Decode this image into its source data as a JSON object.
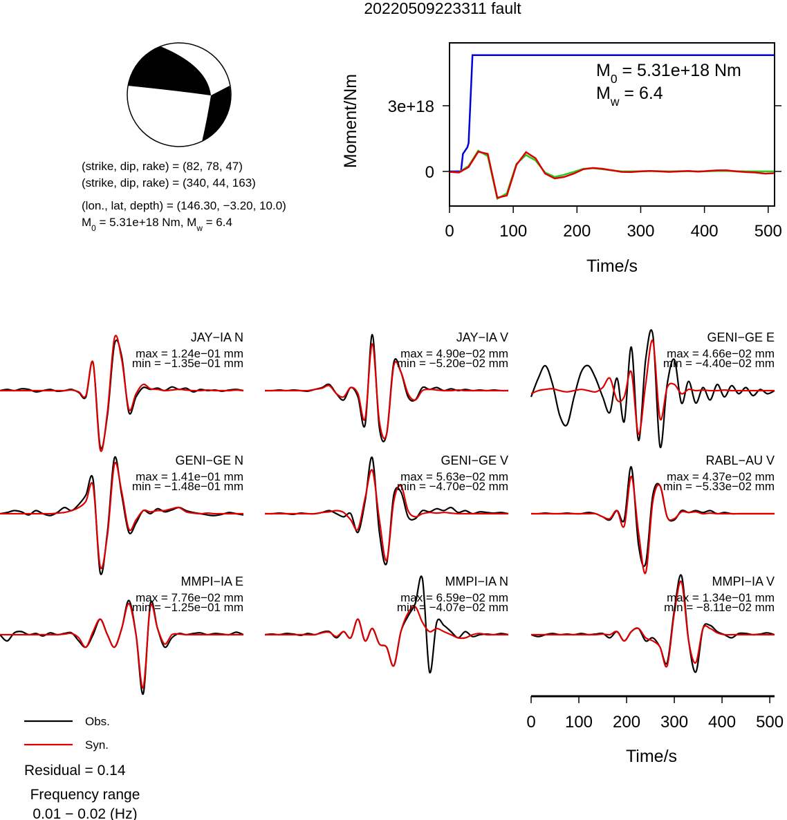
{
  "title": "20220509223311 fault",
  "mechanism": {
    "lines": [
      "(strike, dip, rake) = (82, 78, 47)",
      "(strike, dip, rake) = (340, 44, 163)",
      "(lon., lat, depth) = (146.30, −3.20, 10.0)"
    ],
    "moment_line": [
      "M",
      "0",
      " = 5.31e+18 Nm, M",
      "w",
      " = 6.4"
    ]
  },
  "legend": [
    {
      "name": "Obs.",
      "color": "#000000"
    },
    {
      "name": "Syn.",
      "color": "#dd0000"
    }
  ],
  "residual": "Residual = 0.14",
  "frequency": [
    "Frequency range",
    "0.01 − 0.02 (Hz)"
  ],
  "chart_data": [
    {
      "type": "line",
      "ylabel": "Moment/Nm",
      "xlabel": "Time/s",
      "xlim": [
        0,
        510
      ],
      "xticks": [
        0,
        100,
        200,
        300,
        400,
        500
      ],
      "ylim": [
        -1.58e+18,
        5.87e+18
      ],
      "yticks": [
        0,
        {
          "value": 3e+18,
          "label": "3e+18"
        }
      ],
      "grid": false,
      "annotations": [
        [
          "M",
          "0",
          " = 5.31e+18 Nm"
        ],
        [
          "M",
          "w",
          " = 6.4"
        ]
      ],
      "series": [
        {
          "color": "#0000dd",
          "x": [
            0,
            18,
            21,
            28,
            30,
            36,
            510
          ],
          "values": [
            0,
            0,
            8e+17,
            1.1e+18,
            1.3e+18,
            5.31e+18,
            5.31e+18
          ]
        },
        {
          "color": "#22cc22",
          "x": [
            0,
            15,
            30,
            45,
            60,
            75,
            90,
            105,
            120,
            135,
            150,
            165,
            180,
            195,
            210,
            225,
            240,
            255,
            270,
            285,
            300,
            315,
            330,
            345,
            360,
            375,
            390,
            405,
            420,
            435,
            450,
            465,
            480,
            495,
            510
          ],
          "values": [
            -2e+16,
            -4e+16,
            2.5e+17,
            9.5e+17,
            7e+17,
            -1.25e+18,
            -1e+18,
            3.5e+17,
            7.5e+17,
            5e+17,
            -5e+16,
            -2.5e+17,
            -1.5e+17,
            -2e+16,
            1.2e+17,
            1.5e+17,
            1e+17,
            5e+16,
            0,
            0,
            1e+16,
            2e+16,
            1e+16,
            0,
            1e+16,
            1e+16,
            0,
            1e+16,
            2e+16,
            2e+16,
            1e+16,
            0,
            0,
            0,
            0
          ]
        },
        {
          "color": "#dd0000",
          "x": [
            0,
            15,
            30,
            45,
            60,
            75,
            90,
            105,
            120,
            135,
            150,
            165,
            180,
            195,
            210,
            225,
            240,
            255,
            270,
            285,
            300,
            315,
            330,
            345,
            360,
            375,
            390,
            405,
            420,
            435,
            450,
            465,
            480,
            495,
            510
          ],
          "values": [
            -2e+16,
            -5e+16,
            2e+17,
            9e+17,
            8e+17,
            -1.2e+18,
            -1.1e+18,
            3e+17,
            8.8e+17,
            6e+17,
            -1e+17,
            -3.2e+17,
            -2.5e+17,
            -1e+17,
            1e+17,
            1.6e+17,
            1.2e+17,
            5e+16,
            -2e+16,
            -3e+16,
            0,
            2e+16,
            0,
            -2e+16,
            0,
            2e+16,
            -1e+16,
            2e+16,
            5e+16,
            5e+16,
            0,
            -3e+16,
            -5e+16,
            -1e+17,
            -8e+16
          ]
        }
      ]
    },
    {
      "type": "waveform",
      "xlabel": "Time/s",
      "xlim": [
        0,
        510
      ],
      "xticks": [
        0,
        100,
        200,
        300,
        400,
        500
      ],
      "ylim": [
        -1,
        1
      ],
      "x": [
        0,
        15,
        30,
        45,
        60,
        75,
        90,
        105,
        120,
        135,
        150,
        165,
        180,
        195,
        210,
        225,
        240,
        255,
        270,
        285,
        300,
        315,
        330,
        345,
        360,
        375,
        390,
        405,
        420,
        435,
        450,
        465,
        480,
        495,
        510
      ],
      "panels": [
        {
          "label": "JAY−IA N",
          "max": "max = 1.24e−01 mm",
          "min": "min = −1.35e−01 mm",
          "obs": [
            0,
            0.02,
            0,
            0.03,
            0.02,
            -0.02,
            0,
            0.02,
            -0.01,
            0,
            0.02,
            -0.03,
            -0.1,
            0.45,
            -0.9,
            -0.4,
            0.75,
            0.55,
            -0.35,
            -0.1,
            0.05,
            0.02,
            0.04,
            0,
            0.06,
            0.02,
            0.04,
            -0.02,
            0.02,
            0,
            0.01,
            -0.01,
            0.01,
            0.02,
            0
          ],
          "syn": [
            0,
            0,
            0,
            0,
            0,
            0,
            0,
            0,
            0,
            0,
            0.01,
            -0.02,
            -0.08,
            0.45,
            -0.95,
            -0.35,
            0.85,
            0.5,
            -0.3,
            -0.05,
            0.1,
            0.03,
            0.02,
            0,
            0.01,
            0.02,
            0.01,
            0,
            0,
            0.01,
            0,
            0,
            0,
            0.01,
            0
          ]
        },
        {
          "label": "JAY−IA V",
          "max": "max = 4.90e−02 mm",
          "min": "min = −5.20e−02 mm",
          "obs": [
            0,
            0,
            0.01,
            0,
            0.01,
            0,
            -0.01,
            0.02,
            0.05,
            0.1,
            -0.05,
            -0.15,
            0.05,
            -0.1,
            -0.55,
            0.9,
            -0.6,
            -0.7,
            0.45,
            0.3,
            -0.1,
            -0.15,
            0.05,
            0.02,
            0.05,
            0,
            0.03,
            0,
            0.02,
            0,
            0.01,
            0,
            0.01,
            0,
            0
          ],
          "syn": [
            0,
            0,
            0,
            0,
            0,
            0,
            0,
            0.02,
            0.04,
            0.08,
            -0.05,
            -0.1,
            0.05,
            -0.05,
            -0.45,
            0.75,
            -0.5,
            -0.7,
            0.4,
            0.3,
            -0.05,
            -0.15,
            0,
            0.02,
            0.01,
            0,
            0,
            0.01,
            0,
            0,
            0,
            0,
            0,
            0,
            0
          ]
        },
        {
          "label": "GENI−GE E",
          "max": "max = 4.66e−02 mm",
          "min": "min = −4.40e−02 mm",
          "obs": [
            -0.1,
            0.2,
            0.4,
            0.1,
            -0.4,
            -0.55,
            -0.1,
            0.3,
            0.4,
            0.2,
            -0.1,
            -0.35,
            0.2,
            -0.5,
            0.7,
            -0.8,
            0.5,
            0.9,
            -0.9,
            0.1,
            0.5,
            -0.2,
            0.15,
            -0.2,
            0.05,
            -0.15,
            0.1,
            -0.1,
            0.08,
            -0.05,
            0.05,
            -0.08,
            0.02,
            -0.05,
            0
          ],
          "syn": [
            -0.05,
            0,
            0.02,
            0.03,
            0,
            -0.02,
            0,
            0.02,
            0,
            -0.02,
            0.05,
            0.2,
            -0.15,
            -0.1,
            0.3,
            -0.7,
            0.1,
            0.8,
            -0.45,
            0.05,
            0.1,
            -0.05,
            0.02,
            0,
            0.01,
            0,
            0,
            0.01,
            0,
            0,
            0,
            0,
            0,
            0,
            0
          ]
        },
        {
          "label": "GENI−GE N",
          "max": "max = 1.41e−01 mm",
          "min": "min = −1.48e−01 mm",
          "obs": [
            0,
            0.02,
            0.05,
            0.03,
            -0.02,
            0.05,
            0,
            -0.03,
            0.02,
            0.1,
            0.05,
            0.15,
            0.3,
            0.55,
            -0.95,
            -0.3,
            0.9,
            0.3,
            -0.3,
            -0.15,
            0.05,
            0,
            0.08,
            0.03,
            0.06,
            0.1,
            0.05,
            0.02,
            0,
            -0.02,
            -0.03,
            -0.01,
            0.02,
            0,
            -0.02
          ],
          "syn": [
            0,
            0,
            0,
            0,
            0,
            0,
            0,
            0,
            0.01,
            0.02,
            0.05,
            0.1,
            0.2,
            0.45,
            -0.85,
            -0.35,
            0.8,
            0.35,
            -0.25,
            -0.1,
            0.05,
            0.03,
            0.05,
            0.05,
            0.08,
            0.1,
            0.03,
            0.01,
            0,
            0.01,
            0,
            0,
            0,
            0,
            0
          ]
        },
        {
          "label": "GENI−GE V",
          "max": "max = 5.63e−02 mm",
          "min": "min = −4.70e−02 mm",
          "obs": [
            0,
            0,
            0.01,
            0,
            -0.01,
            0.01,
            0,
            0,
            0.02,
            0.05,
            0,
            -0.05,
            0,
            -0.3,
            0.2,
            0.9,
            -0.3,
            -0.8,
            0.3,
            0.35,
            -0.05,
            -0.08,
            0.05,
            0.03,
            0.08,
            0.05,
            0.1,
            0.02,
            0.05,
            0,
            0.03,
            0.02,
            0.01,
            0.02,
            0
          ],
          "syn": [
            0,
            0,
            0,
            0,
            0,
            0,
            0,
            0,
            0.02,
            0.03,
            0.05,
            0.02,
            -0.1,
            -0.25,
            0.25,
            0.7,
            -0.1,
            -0.75,
            0.2,
            0.45,
            0.05,
            -0.05,
            0,
            0.02,
            0.01,
            0.02,
            0.01,
            0,
            0,
            0,
            0,
            0,
            0,
            0,
            0
          ]
        },
        {
          "label": "RABL−AU V",
          "max": "max = 4.37e−02 mm",
          "min": "min = −5.33e−02 mm",
          "obs": [
            0,
            0,
            0.01,
            0,
            0,
            0.01,
            0,
            0,
            0.02,
            0,
            -0.05,
            -0.1,
            0.05,
            -0.1,
            0.75,
            -0.5,
            -0.8,
            0.3,
            0.45,
            -0.05,
            -0.1,
            0.05,
            0.02,
            0.05,
            0.02,
            0.05,
            0,
            0.02,
            0,
            0,
            0,
            0,
            0,
            0,
            0
          ],
          "syn": [
            0,
            0,
            0,
            0,
            0,
            0,
            0,
            0,
            0,
            0,
            -0.05,
            -0.08,
            0.05,
            -0.2,
            0.6,
            -0.3,
            -0.95,
            0.2,
            0.45,
            -0.05,
            -0.08,
            0.03,
            0.02,
            0.03,
            0,
            0.01,
            0,
            0,
            0,
            0,
            0,
            0,
            0,
            0,
            0
          ]
        },
        {
          "label": "MMPI−IA E",
          "max": "max = 7.76e−02 mm",
          "min": "min = −1.25e−01 mm",
          "obs": [
            0,
            -0.1,
            0.03,
            0.05,
            0,
            0.02,
            -0.02,
            0.03,
            0,
            0.02,
            0.03,
            -0.1,
            -0.2,
            0,
            0.25,
            0,
            -0.2,
            0.1,
            0.55,
            0,
            -0.95,
            0.5,
            0.1,
            -0.2,
            -0.05,
            0.02,
            0,
            0.02,
            0.03,
            0,
            0.02,
            0.01,
            0,
            0.04,
            0
          ],
          "syn": [
            0,
            0,
            0,
            0,
            0,
            0,
            0,
            0,
            0,
            0.01,
            0.02,
            -0.05,
            -0.2,
            0.05,
            0.25,
            0,
            -0.2,
            0.1,
            0.5,
            0,
            -0.85,
            0.45,
            0.1,
            -0.15,
            0,
            0.01,
            0,
            0,
            0,
            0,
            0,
            0,
            0,
            0,
            0
          ]
        },
        {
          "label": "MMPI−IA N",
          "max": "max = 6.59e−02 mm",
          "min": "min = −4.07e−02 mm",
          "obs": [
            0,
            0.01,
            0,
            0.02,
            0.01,
            -0.01,
            0.02,
            0,
            0.04,
            0.05,
            -0.05,
            0.05,
            -0.05,
            0.25,
            -0.1,
            0.1,
            -0.15,
            -0.2,
            -0.5,
            0.05,
            0.3,
            0.5,
            0.9,
            -0.6,
            0.2,
            0.15,
            0.05,
            -0.05,
            0.05,
            -0.03,
            0,
            0.01,
            0,
            0.02,
            0
          ],
          "syn": [
            0,
            0,
            0,
            0,
            0,
            0,
            0,
            0,
            0.03,
            0.04,
            -0.03,
            0.05,
            -0.05,
            0.25,
            -0.1,
            0.1,
            -0.15,
            -0.2,
            -0.5,
            0.05,
            0.35,
            0.45,
            0.2,
            0.05,
            0.1,
            0.05,
            0,
            -0.05,
            -0.05,
            0,
            0.02,
            0,
            0,
            0,
            0
          ]
        },
        {
          "label": "MMPI−IA V",
          "max": "max = 1.34e−01 mm",
          "min": "min = −8.11e−02 mm",
          "obs": [
            0,
            -0.03,
            0,
            0.02,
            0,
            0.01,
            0,
            0.02,
            0,
            0.01,
            0.02,
            -0.05,
            0.05,
            -0.1,
            0.05,
            0.1,
            -0.1,
            -0.05,
            -0.2,
            -0.45,
            0.4,
            0.95,
            -0.1,
            -0.6,
            0.1,
            0.15,
            0.05,
            0,
            -0.05,
            0.02,
            0.02,
            0,
            0.01,
            0.03,
            0
          ],
          "syn": [
            0,
            0,
            0,
            0,
            0,
            0,
            0,
            0,
            0,
            0,
            0.01,
            0,
            0.05,
            -0.1,
            0.05,
            0.1,
            -0.05,
            -0.1,
            -0.2,
            -0.5,
            0.35,
            0.85,
            -0.1,
            -0.45,
            0.1,
            0.1,
            0.03,
            0,
            0,
            0,
            0,
            0,
            0,
            0,
            0
          ]
        }
      ]
    }
  ]
}
